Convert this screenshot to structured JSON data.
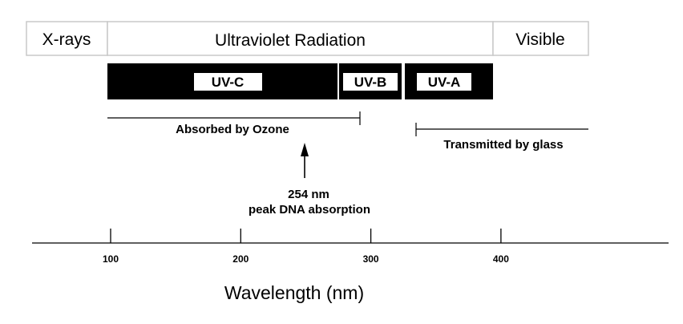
{
  "spectrum_bands": [
    {
      "label": "X-rays"
    },
    {
      "label": "Ultraviolet Radiation"
    },
    {
      "label": "Visible"
    }
  ],
  "uv_subbands": [
    {
      "label": "UV-C"
    },
    {
      "label": "UV-B"
    },
    {
      "label": "UV-A"
    }
  ],
  "ranges": {
    "ozone": {
      "label": "Absorbed by Ozone",
      "from_nm": 100,
      "to_nm": 295
    },
    "glass": {
      "label": "Transmitted by glass",
      "from_nm": 335,
      "to_nm": 465
    }
  },
  "marker": {
    "value_label": "254 nm",
    "caption": "peak DNA absorption",
    "at_nm": 254
  },
  "axis": {
    "title": "Wavelength (nm)",
    "ticks": [
      {
        "value": 100,
        "label": "100"
      },
      {
        "value": 200,
        "label": "200"
      },
      {
        "value": 300,
        "label": "300"
      },
      {
        "value": 400,
        "label": "400"
      }
    ]
  },
  "colors": {
    "ink": "#000000",
    "band_border": "#c8c8c8",
    "background": "#ffffff"
  }
}
